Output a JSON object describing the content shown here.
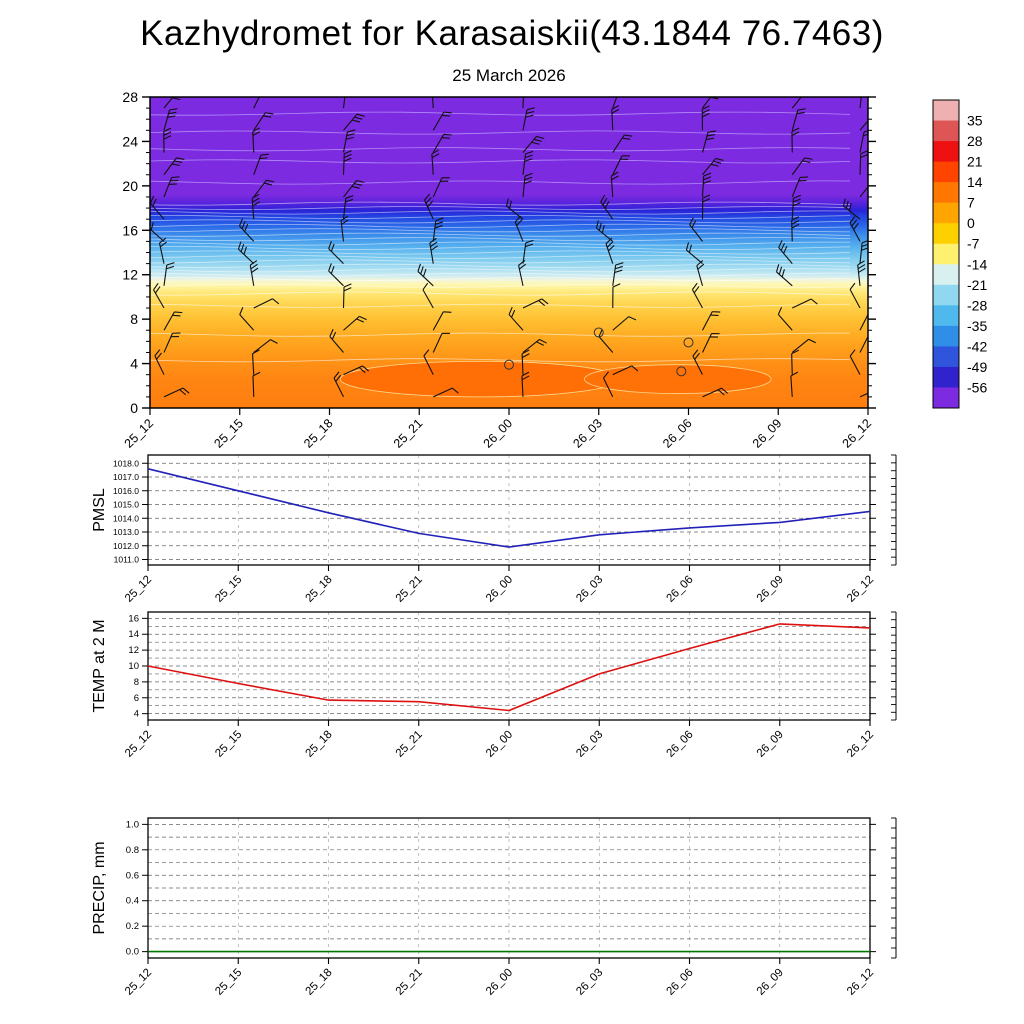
{
  "title": "Kazhydromet for Karasaiskii(43.1844 76.7463)",
  "date_label": "25 March 2026",
  "time_labels": [
    "25_12",
    "25_15",
    "25_18",
    "25_21",
    "26_00",
    "26_03",
    "26_06",
    "26_09",
    "26_12"
  ],
  "chart_data": [
    {
      "type": "heatmap",
      "name": "temperature-height-cross-section",
      "title": "25 March 2026",
      "x": [
        "25_12",
        "25_15",
        "25_18",
        "25_21",
        "26_00",
        "26_03",
        "26_06",
        "26_09",
        "26_12"
      ],
      "ylim": [
        0,
        28
      ],
      "yticks": [
        0,
        4,
        8,
        12,
        16,
        20,
        24,
        28
      ],
      "legend_position": "right-colorbar",
      "colorbar_ticks": [
        35,
        28,
        21,
        14,
        7,
        0,
        -7,
        -14,
        -21,
        -28,
        -35,
        -42,
        -49,
        -56
      ],
      "colorbar_colors": [
        "#eeb0b0",
        "#dd5555",
        "#ee1111",
        "#ff4400",
        "#ff7700",
        "#ffa500",
        "#ffd000",
        "#fff170",
        "#d8f0f0",
        "#8fd8f0",
        "#4fb9ee",
        "#2f8fe8",
        "#2f55dd",
        "#3022cc",
        "#7c2be0"
      ],
      "gradient": [
        {
          "h": 28,
          "color": "#7c2be0"
        },
        {
          "h": 19.2,
          "color": "#7c2be0"
        },
        {
          "h": 18.4,
          "color": "#5522dd"
        },
        {
          "h": 17.8,
          "color": "#2a23d8"
        },
        {
          "h": 17.2,
          "color": "#2345e2"
        },
        {
          "h": 16.4,
          "color": "#2a67e8"
        },
        {
          "h": 15.6,
          "color": "#3b8ceb"
        },
        {
          "h": 14.6,
          "color": "#55aeee"
        },
        {
          "h": 13.6,
          "color": "#79c8ef"
        },
        {
          "h": 12.6,
          "color": "#a5ddf1"
        },
        {
          "h": 11.9,
          "color": "#cfecf2"
        },
        {
          "h": 11.5,
          "color": "#f4f6d9"
        },
        {
          "h": 11.1,
          "color": "#fff7b0"
        },
        {
          "h": 10.4,
          "color": "#ffe878"
        },
        {
          "h": 9.6,
          "color": "#ffd957"
        },
        {
          "h": 8.6,
          "color": "#ffc93e"
        },
        {
          "h": 7.6,
          "color": "#ffbb2e"
        },
        {
          "h": 6.4,
          "color": "#ffab22"
        },
        {
          "h": 5.2,
          "color": "#ff9d1b"
        },
        {
          "h": 4.0,
          "color": "#ff9016"
        },
        {
          "h": 2.6,
          "color": "#ff8512"
        },
        {
          "h": 0,
          "color": "#ff7e10"
        }
      ],
      "warm_cores": [
        {
          "cx": 0.46,
          "cy": 2.6,
          "rx": 0.195,
          "ry": 1.6,
          "color": "#ff6f05"
        },
        {
          "cx": 0.735,
          "cy": 2.6,
          "rx": 0.13,
          "ry": 1.3,
          "color": "#ff7208"
        }
      ],
      "contour_levels": [
        4.3,
        6.6,
        9.2,
        10.3,
        11.0,
        11.6,
        12.0,
        12.4,
        12.8,
        13.2,
        13.6,
        14.0,
        14.4,
        14.8,
        15.2,
        15.6,
        16.0,
        16.4,
        16.8,
        17.2,
        17.6,
        18.0,
        18.4,
        20.3,
        22.2,
        23.3,
        24.8,
        26.5
      ],
      "calm_circles": [
        [
          0.5,
          3.9
        ],
        [
          0.625,
          6.8
        ],
        [
          0.75,
          5.9
        ],
        [
          0.74,
          3.3
        ]
      ],
      "wind_barbs": {
        "columns": 10,
        "rows": 14
      }
    },
    {
      "type": "line",
      "name": "pmsl",
      "ylabel": "PMSL",
      "color": "#2222bb",
      "x": [
        "25_12",
        "25_15",
        "25_18",
        "25_21",
        "26_00",
        "26_03",
        "26_06",
        "26_09",
        "26_12"
      ],
      "values": [
        1017.6,
        1016.0,
        1014.4,
        1012.9,
        1011.9,
        1012.8,
        1013.3,
        1013.7,
        1014.5
      ],
      "yticks": [
        1011,
        1012,
        1013,
        1014,
        1015,
        1016,
        1017,
        1018
      ],
      "ytick_decimals": 1,
      "ylim": [
        1010.6,
        1018.6
      ],
      "grid": "dashed"
    },
    {
      "type": "line",
      "name": "temp-2m",
      "ylabel": "TEMP at 2 M",
      "color": "#dd1111",
      "x": [
        "25_12",
        "25_15",
        "25_18",
        "25_21",
        "26_00",
        "26_03",
        "26_06",
        "26_09",
        "26_12"
      ],
      "values": [
        10.0,
        7.8,
        5.7,
        5.5,
        4.4,
        9.0,
        12.2,
        15.3,
        14.8
      ],
      "yticks": [
        4,
        6,
        8,
        10,
        12,
        14,
        16
      ],
      "minor_grid_step": 1,
      "ytick_decimals": 0,
      "ylim": [
        3.2,
        16.8
      ],
      "grid": "dashed"
    },
    {
      "type": "line",
      "name": "precip",
      "ylabel": "PRECIP, mm",
      "color": "#007700",
      "x": [
        "25_12",
        "25_15",
        "25_18",
        "25_21",
        "26_00",
        "26_03",
        "26_06",
        "26_09",
        "26_12"
      ],
      "values": [
        0,
        0,
        0,
        0,
        0,
        0,
        0,
        0,
        0
      ],
      "yticks": [
        0.0,
        0.2,
        0.4,
        0.6,
        0.8,
        1.0
      ],
      "minor_grid_step": 0.1,
      "ytick_decimals": 1,
      "ylim": [
        -0.05,
        1.05
      ],
      "grid": "dashed"
    }
  ]
}
